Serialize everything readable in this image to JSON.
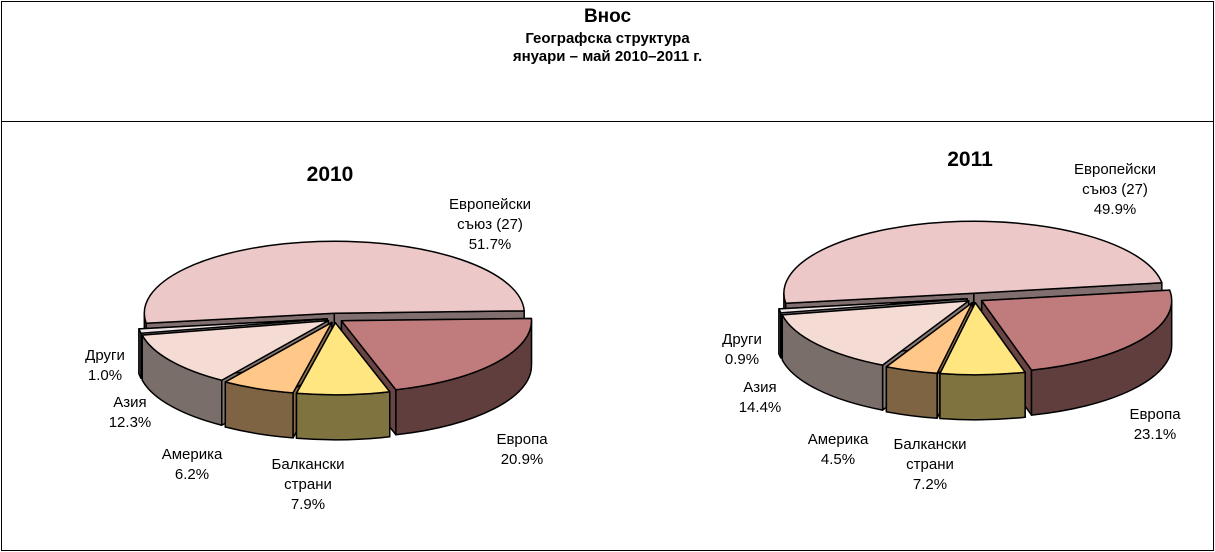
{
  "title": "Внос",
  "subtitle": "Географска структура",
  "period": "януари – май 2010–2011 г.",
  "chart_data": [
    {
      "type": "pie3d",
      "title": "2010",
      "categories": [
        "Европейски съюз (27)",
        "Европа",
        "Балкански страни",
        "Америка",
        "Азия",
        "Други"
      ],
      "values": [
        51.7,
        20.9,
        7.9,
        6.2,
        12.3,
        1.0
      ],
      "value_labels": [
        "51.7%",
        "20.9%",
        "7.9%",
        "6.2%",
        "12.3%",
        "1.0%"
      ],
      "colors": [
        "#ecc8c8",
        "#c07c7c",
        "#ffe680",
        "#ffc888",
        "#f4dcd4",
        "#eee4e4"
      ]
    },
    {
      "type": "pie3d",
      "title": "2011",
      "categories": [
        "Европейски съюз (27)",
        "Европа",
        "Балкански страни",
        "Америка",
        "Азия",
        "Други"
      ],
      "values": [
        49.9,
        23.1,
        7.2,
        4.5,
        14.4,
        0.9
      ],
      "value_labels": [
        "49.9%",
        "23.1%",
        "7.2%",
        "4.5%",
        "14.4%",
        "0.9%"
      ],
      "colors": [
        "#ecc8c8",
        "#c07c7c",
        "#ffe680",
        "#ffc888",
        "#f4dcd4",
        "#eee4e4"
      ]
    }
  ]
}
